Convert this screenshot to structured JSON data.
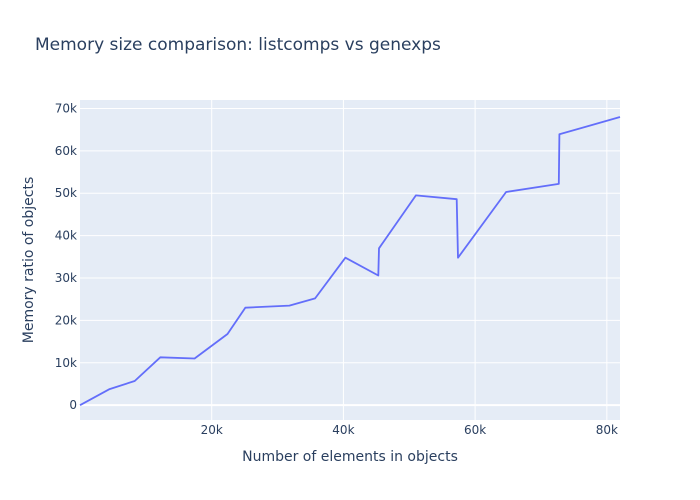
{
  "chart_data": {
    "type": "line",
    "title": "Memory size comparison: listcomps vs genexps",
    "xlabel": "Number of elements in objects",
    "ylabel": "Memory ratio of objects",
    "xlim": [
      0,
      82000
    ],
    "ylim": [
      -3500,
      72000
    ],
    "x_ticks": [
      20000,
      40000,
      60000,
      80000
    ],
    "x_tick_labels": [
      "20k",
      "40k",
      "60k",
      "80k"
    ],
    "y_ticks": [
      0,
      10000,
      20000,
      30000,
      40000,
      50000,
      60000,
      70000
    ],
    "y_tick_labels": [
      "0",
      "10k",
      "20k",
      "30k",
      "40k",
      "50k",
      "60k",
      "70k"
    ],
    "grid": true,
    "series": [
      {
        "color": "#636efa",
        "x": [
          0,
          4500,
          8300,
          12200,
          17400,
          22400,
          25100,
          31800,
          35700,
          40300,
          45300,
          45400,
          51000,
          57200,
          57400,
          64700,
          72700,
          72800,
          82000
        ],
        "y": [
          0,
          3800,
          5700,
          11300,
          11000,
          16800,
          23000,
          23500,
          25200,
          34800,
          30600,
          37000,
          49500,
          48600,
          34800,
          50300,
          52200,
          63900,
          68000
        ]
      }
    ]
  }
}
